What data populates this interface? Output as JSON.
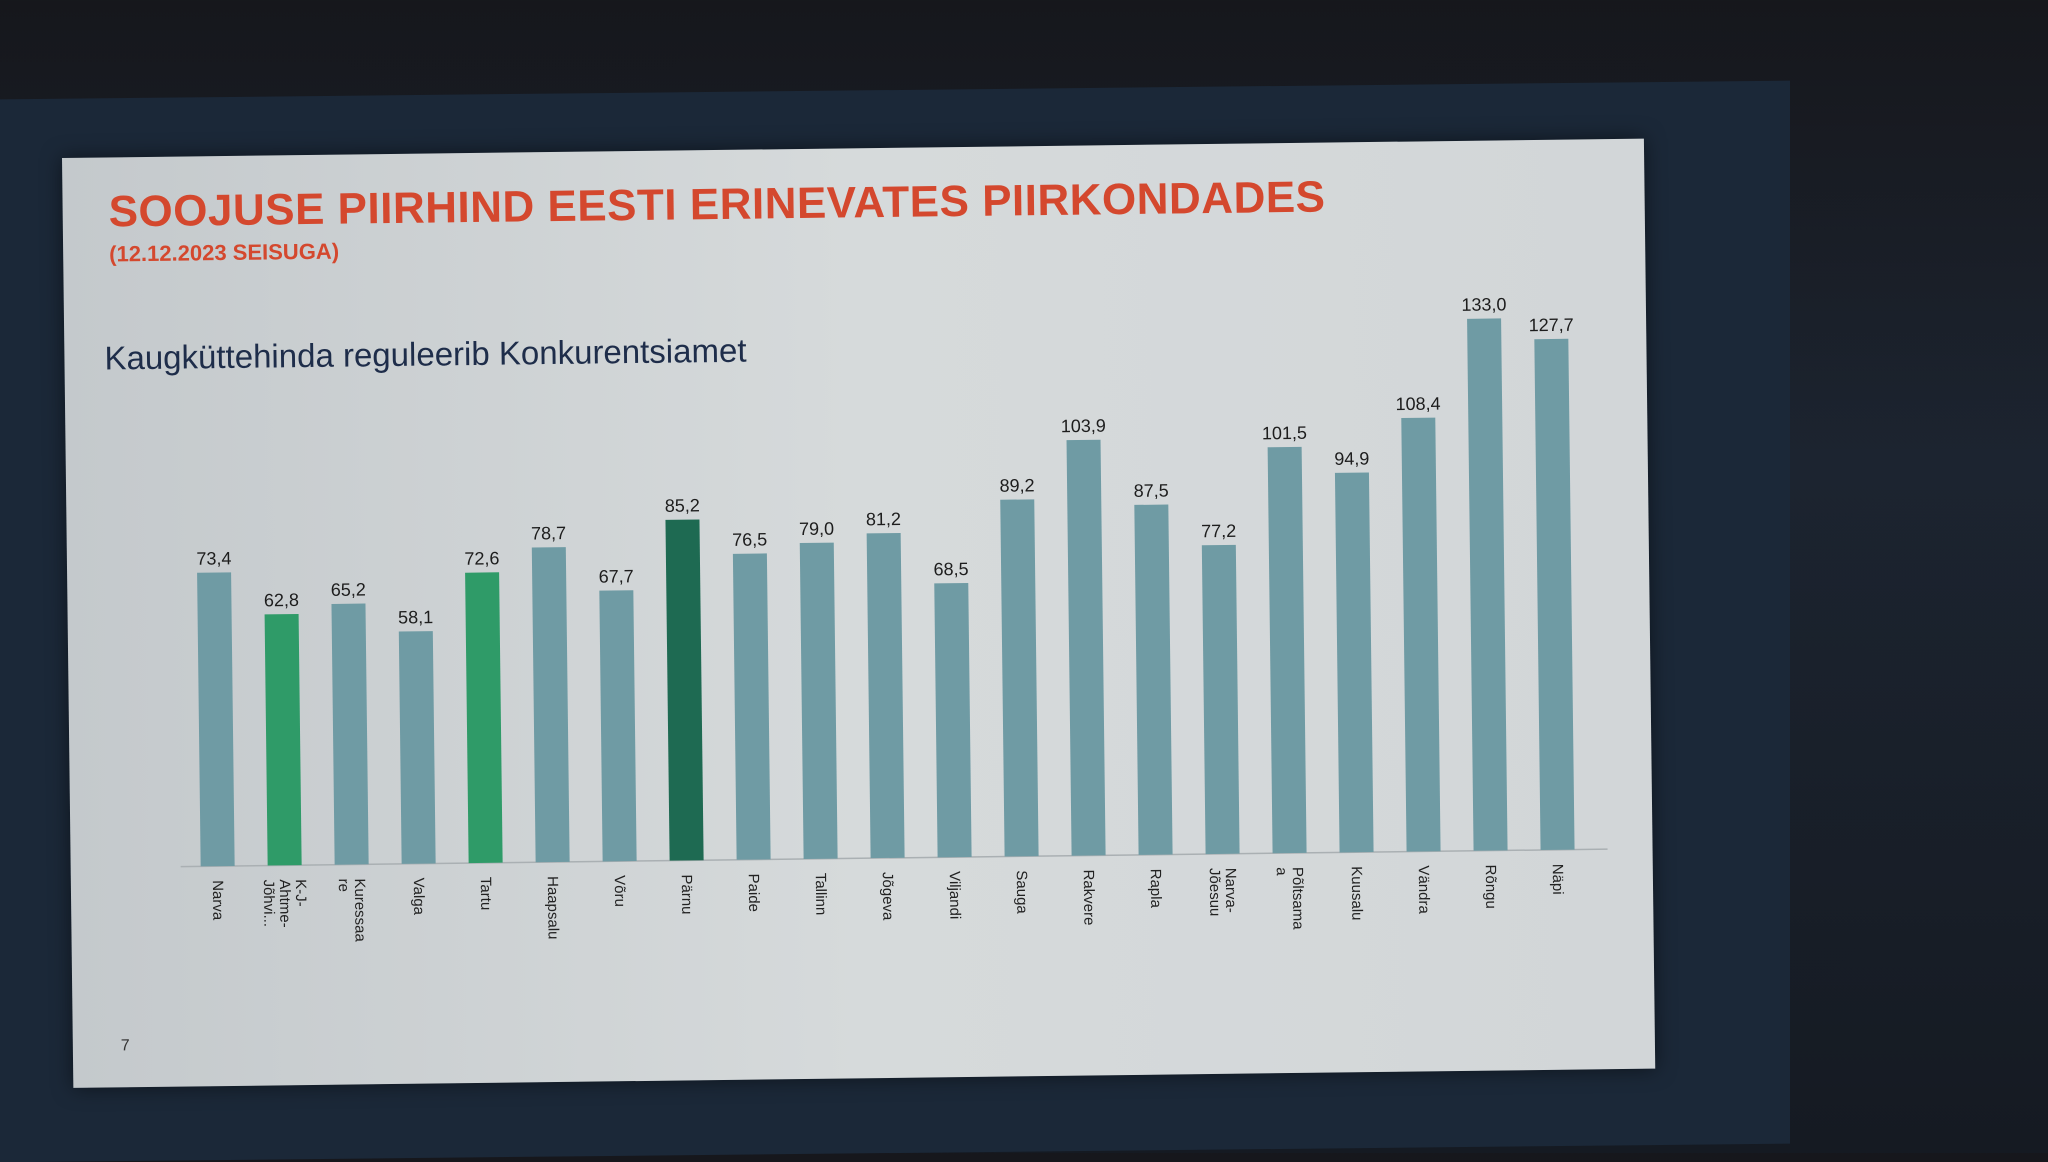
{
  "slide": {
    "title": "SOOJUSE PIIRHIND EESTI ERINEVATES PIIRKONDADES",
    "subtitle": "(12.12.2023 SEISUGA)",
    "heading": "Kaugküttehinda reguleerib Konkurentsiamet",
    "page_number": "7"
  },
  "colors": {
    "title": "#d4482e",
    "bar_default": "#6f9ba4",
    "bar_highlight": "#2f9b68",
    "bar_dark": "#1e6a52"
  },
  "chart_data": {
    "type": "bar",
    "title": "",
    "xlabel": "",
    "ylabel": "",
    "ylim": [
      0,
      140
    ],
    "grid": false,
    "categories": [
      "Narva",
      "K-J-Ahtme-Jõhvi...",
      "Kuressaare",
      "Valga",
      "Tartu",
      "Haapsalu",
      "Võru",
      "Pärnu",
      "Paide",
      "Tallinn",
      "Jõgeva",
      "Viljandi",
      "Sauga",
      "Rakvere",
      "Rapla",
      "Narva-Jõesuu",
      "Põltsamaa",
      "Kuusalu",
      "Vändra",
      "Rõngu",
      "Näpi"
    ],
    "category_display": [
      [
        "Narva"
      ],
      [
        "K-J-",
        "Ahtme-",
        "Jõhvi..."
      ],
      [
        "Kuressaa",
        "re"
      ],
      [
        "Valga"
      ],
      [
        "Tartu"
      ],
      [
        "Haapsalu"
      ],
      [
        "Võru"
      ],
      [
        "Pärnu"
      ],
      [
        "Paide"
      ],
      [
        "Tallinn"
      ],
      [
        "Jõgeva"
      ],
      [
        "Viljandi"
      ],
      [
        "Sauga"
      ],
      [
        "Rakvere"
      ],
      [
        "Rapla"
      ],
      [
        "Narva-",
        "Jõesuu"
      ],
      [
        "Põltsama",
        "a"
      ],
      [
        "Kuusalu"
      ],
      [
        "Vändra"
      ],
      [
        "Rõngu"
      ],
      [
        "Näpi"
      ]
    ],
    "values": [
      73.4,
      62.8,
      65.2,
      58.1,
      72.6,
      78.7,
      67.7,
      85.2,
      76.5,
      79.0,
      81.2,
      68.5,
      89.2,
      103.9,
      87.5,
      77.2,
      101.5,
      94.9,
      108.4,
      133.0,
      127.7
    ],
    "value_labels": [
      "73,4",
      "62,8",
      "65,2",
      "58,1",
      "72,6",
      "78,7",
      "67,7",
      "85,2",
      "76,5",
      "79,0",
      "81,2",
      "68,5",
      "89,2",
      "103,9",
      "87,5",
      "77,2",
      "101,5",
      "94,9",
      "108,4",
      "133,0",
      "127,7"
    ],
    "bar_colors": [
      "default",
      "highlight",
      "default",
      "default",
      "highlight",
      "default",
      "default",
      "dark",
      "default",
      "default",
      "default",
      "default",
      "default",
      "default",
      "default",
      "default",
      "default",
      "default",
      "default",
      "default",
      "default"
    ]
  }
}
